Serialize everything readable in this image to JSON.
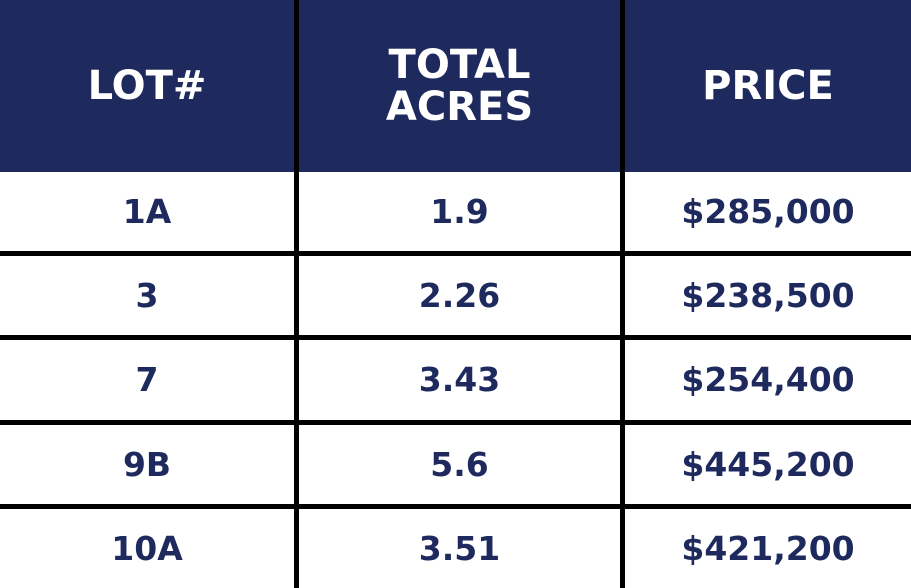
{
  "table": {
    "header": [
      "LOT#",
      "TOTAL ACRES",
      "PRICE"
    ],
    "rows": [
      [
        "1A",
        "1.9",
        "$285,000"
      ],
      [
        "3",
        "2.26",
        "$238,500"
      ],
      [
        "7",
        "3.43",
        "$254,400"
      ],
      [
        "9B",
        "5.6",
        "$445,200"
      ],
      [
        "10A",
        "3.51",
        "$421,200"
      ]
    ]
  }
}
